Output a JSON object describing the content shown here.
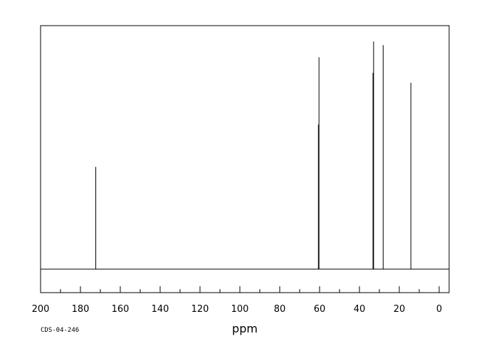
{
  "chart_data": {
    "type": "line",
    "title": "",
    "xlabel": "ppm",
    "ylabel": "",
    "xlim": [
      200,
      -5
    ],
    "x_reversed": true,
    "x_ticks": [
      200,
      180,
      160,
      140,
      120,
      100,
      80,
      60,
      40,
      20,
      0
    ],
    "x_minor_step": 10,
    "grid": false,
    "legend": "none",
    "sample_code": "CDS-04-246",
    "peaks": [
      {
        "ppm": 172.3,
        "height": 0.42
      },
      {
        "ppm": 60.6,
        "height": 0.594
      },
      {
        "ppm": 60.3,
        "height": 0.87
      },
      {
        "ppm": 33.2,
        "height": 0.806
      },
      {
        "ppm": 32.9,
        "height": 0.935
      },
      {
        "ppm": 28.1,
        "height": 0.92
      },
      {
        "ppm": 14.2,
        "height": 0.765
      }
    ],
    "colors": {
      "line": "#000000",
      "frame": "#000000"
    }
  }
}
